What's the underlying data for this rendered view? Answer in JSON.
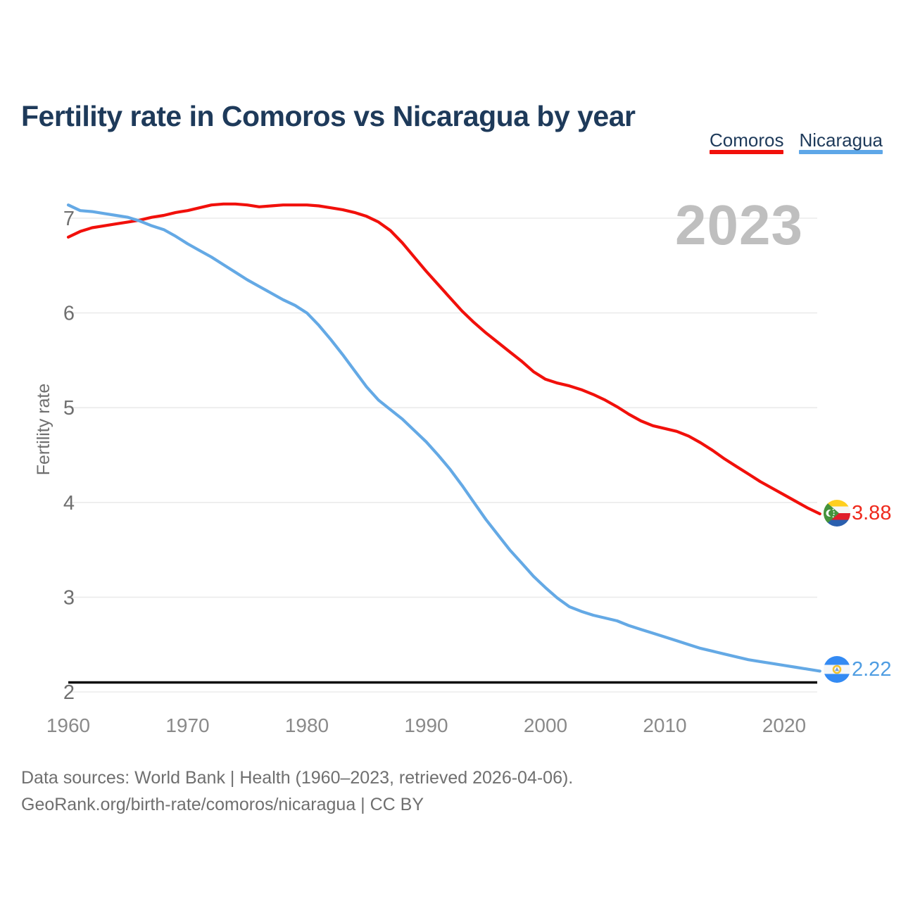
{
  "title": "Fertility rate in Comoros vs Nicaragua by year",
  "legend": {
    "items": [
      {
        "label": "Comoros",
        "color": "#f1100b"
      },
      {
        "label": "Nicaragua",
        "color": "#5ea7e8"
      }
    ]
  },
  "watermark": "2023",
  "y_axis": {
    "label": "Fertility rate",
    "ticks": [
      "7",
      "6",
      "5",
      "4",
      "3",
      "2"
    ]
  },
  "x_axis": {
    "ticks": [
      "1960",
      "1970",
      "1980",
      "1990",
      "2000",
      "2010",
      "2020"
    ]
  },
  "reference_line": {
    "value": 2.1,
    "color": "#0b0b0b"
  },
  "end_labels": {
    "comoros": {
      "value": "3.88",
      "color": "#ef2a1d",
      "flag": "comoros-flag"
    },
    "nicaragua": {
      "value": "2.22",
      "color": "#4f9de2",
      "flag": "nicaragua-flag"
    }
  },
  "footer": {
    "line1": "Data sources: World Bank | Health (1960–2023, retrieved 2026-04-06).",
    "line2": "GeoRank.org/birth-rate/comoros/nicaragua | CC BY"
  },
  "chart_data": {
    "type": "line",
    "title": "Fertility rate in Comoros vs Nicaragua by year",
    "xlabel": "",
    "ylabel": "Fertility rate",
    "x_start": 1960,
    "x_end": 2023,
    "x_step": 1,
    "ylim": [
      2,
      7.3
    ],
    "yticks": [
      7,
      6,
      5,
      4,
      3,
      2
    ],
    "xticks": [
      1960,
      1970,
      1980,
      1990,
      2000,
      2010,
      2020
    ],
    "grid": "horizontal",
    "legend_position": "top-right",
    "annotations": {
      "watermark_year": "2023",
      "replacement_line_value": 2.1,
      "end_value_labels": {
        "Comoros": 3.88,
        "Nicaragua": 2.22
      }
    },
    "series": [
      {
        "name": "Comoros",
        "color": "#f1100b",
        "values": [
          6.8,
          6.86,
          6.9,
          6.92,
          6.94,
          6.96,
          6.98,
          7.01,
          7.03,
          7.06,
          7.08,
          7.11,
          7.14,
          7.15,
          7.15,
          7.14,
          7.12,
          7.13,
          7.14,
          7.14,
          7.14,
          7.13,
          7.11,
          7.09,
          7.06,
          7.02,
          6.96,
          6.87,
          6.74,
          6.59,
          6.44,
          6.3,
          6.16,
          6.02,
          5.9,
          5.79,
          5.69,
          5.59,
          5.49,
          5.38,
          5.3,
          5.26,
          5.23,
          5.19,
          5.14,
          5.08,
          5.01,
          4.93,
          4.86,
          4.81,
          4.78,
          4.75,
          4.7,
          4.63,
          4.55,
          4.46,
          4.38,
          4.3,
          4.22,
          4.15,
          4.08,
          4.01,
          3.94,
          3.88
        ]
      },
      {
        "name": "Nicaragua",
        "color": "#64a9e5",
        "values": [
          7.14,
          7.08,
          7.07,
          7.05,
          7.03,
          7.01,
          6.97,
          6.92,
          6.88,
          6.81,
          6.73,
          6.66,
          6.59,
          6.51,
          6.43,
          6.35,
          6.28,
          6.21,
          6.14,
          6.08,
          6.0,
          5.87,
          5.72,
          5.56,
          5.39,
          5.22,
          5.08,
          4.98,
          4.88,
          4.76,
          4.64,
          4.5,
          4.35,
          4.18,
          4.0,
          3.82,
          3.66,
          3.5,
          3.36,
          3.22,
          3.1,
          2.99,
          2.9,
          2.85,
          2.81,
          2.78,
          2.75,
          2.7,
          2.66,
          2.62,
          2.58,
          2.54,
          2.5,
          2.46,
          2.43,
          2.4,
          2.37,
          2.34,
          2.32,
          2.3,
          2.28,
          2.26,
          2.24,
          2.22
        ]
      }
    ]
  }
}
